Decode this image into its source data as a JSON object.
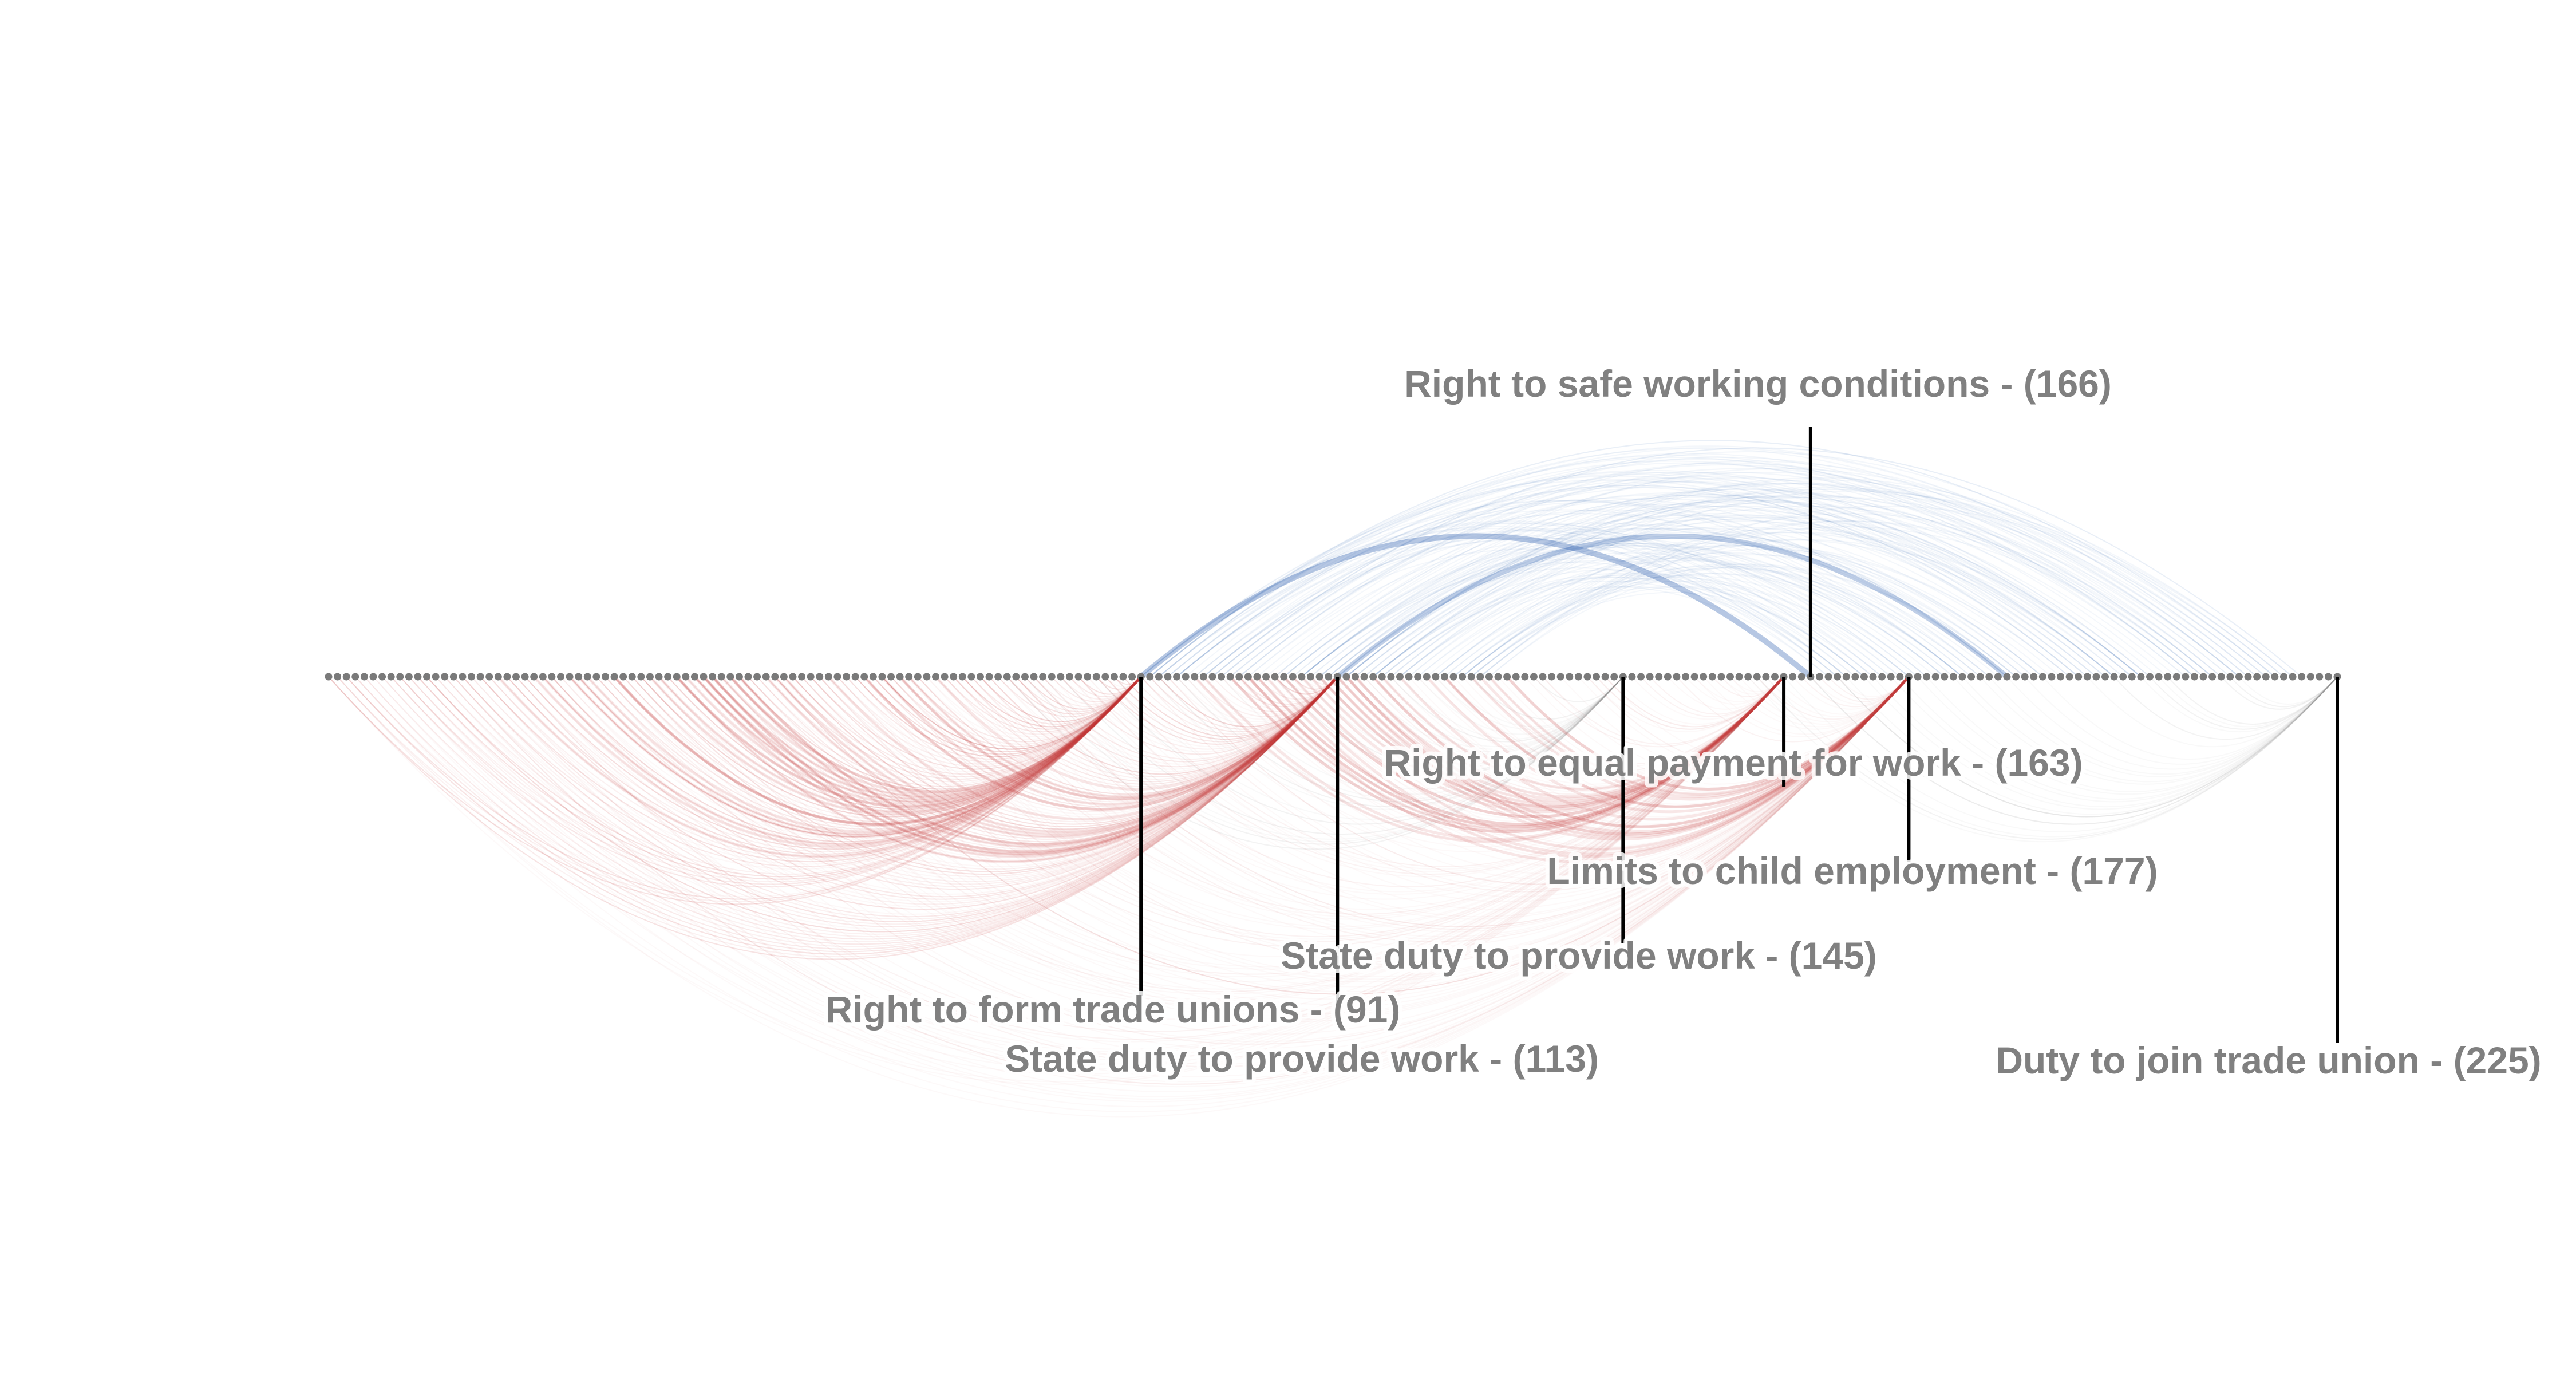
{
  "chart_data": {
    "type": "arc",
    "node_count": 226,
    "highlighted_nodes": [
      {
        "index": 91,
        "label": "Right to form trade unions - (91)",
        "arc_color": "#c8373c",
        "arc_side": "both"
      },
      {
        "index": 113,
        "label": "State duty to provide work - (113)",
        "arc_color": "#c8373c",
        "arc_side": "both"
      },
      {
        "index": 145,
        "label": "State duty to provide work - (145)",
        "arc_color": "#8c8c8c",
        "arc_side": "both"
      },
      {
        "index": 163,
        "label": "Right to equal payment for work - (163)",
        "arc_color": "#c8373c",
        "arc_side": "both"
      },
      {
        "index": 166,
        "label": "Right to safe working conditions - (166)",
        "arc_color": "#2f5fb0",
        "arc_side": "both"
      },
      {
        "index": 177,
        "label": "Limits to child employment - (177)",
        "arc_color": "#c8373c",
        "arc_side": "both"
      },
      {
        "index": 225,
        "label": "Duty to join trade union - (225)",
        "arc_color": "#8c8c8c",
        "arc_side": "both"
      }
    ],
    "colors": {
      "node": "#7a7a7a",
      "arc_red": "#c8373c",
      "arc_blue": "#2f5fb0",
      "arc_gray": "#8c8c8c",
      "leader_line": "#000000",
      "label_text": "#808080"
    }
  }
}
